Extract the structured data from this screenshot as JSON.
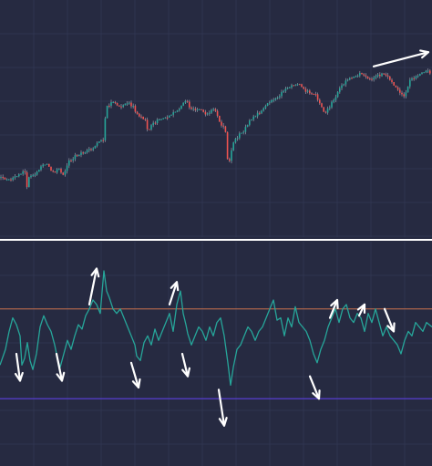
{
  "colors": {
    "background": "#262a41",
    "grid": "#2f3450",
    "up": "#26a69a",
    "down": "#ef5350",
    "wick": "#8a8f9e",
    "oscillator": "#26a69a",
    "upper_level": "#c8704a",
    "lower_level": "#5b3fe0",
    "separator": "#ffffff",
    "arrow": "#ffffff"
  },
  "chart_data": [
    {
      "type": "candlestick",
      "title": "",
      "xlabel": "",
      "ylabel": "",
      "ylim": [
        0,
        100
      ],
      "grid": true,
      "series": [
        {
          "points": [
            [
              0,
              25
            ],
            [
              8,
              24
            ],
            [
              16,
              25
            ],
            [
              24,
              27
            ],
            [
              28,
              28
            ],
            [
              30,
              20
            ],
            [
              32,
              26
            ],
            [
              40,
              27
            ],
            [
              46,
              30
            ],
            [
              52,
              31
            ],
            [
              56,
              28
            ],
            [
              60,
              27
            ],
            [
              64,
              29
            ],
            [
              70,
              26
            ],
            [
              76,
              32
            ],
            [
              82,
              34
            ],
            [
              88,
              35
            ],
            [
              94,
              36
            ],
            [
              100,
              37
            ],
            [
              106,
              39
            ],
            [
              110,
              41
            ],
            [
              114,
              40
            ],
            [
              116,
              55
            ],
            [
              120,
              56
            ],
            [
              126,
              57
            ],
            [
              130,
              55
            ],
            [
              136,
              56
            ],
            [
              140,
              57
            ],
            [
              146,
              55
            ],
            [
              150,
              52
            ],
            [
              156,
              50
            ],
            [
              160,
              49
            ],
            [
              162,
              44
            ],
            [
              166,
              47
            ],
            [
              172,
              49
            ],
            [
              178,
              50
            ],
            [
              184,
              51
            ],
            [
              190,
              52
            ],
            [
              196,
              54
            ],
            [
              200,
              56
            ],
            [
              204,
              58
            ],
            [
              208,
              55
            ],
            [
              214,
              53
            ],
            [
              220,
              54
            ],
            [
              226,
              52
            ],
            [
              230,
              53
            ],
            [
              236,
              54
            ],
            [
              240,
              49
            ],
            [
              244,
              47
            ],
            [
              248,
              44
            ],
            [
              250,
              30
            ],
            [
              252,
              32
            ],
            [
              256,
              40
            ],
            [
              262,
              43
            ],
            [
              268,
              45
            ],
            [
              274,
              49
            ],
            [
              280,
              51
            ],
            [
              286,
              53
            ],
            [
              292,
              56
            ],
            [
              298,
              58
            ],
            [
              304,
              59
            ],
            [
              310,
              61
            ],
            [
              316,
              63
            ],
            [
              322,
              64
            ],
            [
              328,
              65
            ],
            [
              334,
              62
            ],
            [
              340,
              61
            ],
            [
              346,
              60
            ],
            [
              352,
              56
            ],
            [
              356,
              52
            ],
            [
              360,
              54
            ],
            [
              366,
              58
            ],
            [
              372,
              62
            ],
            [
              378,
              65
            ],
            [
              384,
              67
            ],
            [
              390,
              68
            ],
            [
              396,
              69
            ],
            [
              402,
              67
            ],
            [
              408,
              66
            ],
            [
              414,
              68
            ],
            [
              420,
              69
            ],
            [
              426,
              67
            ],
            [
              432,
              64
            ],
            [
              438,
              62
            ],
            [
              442,
              59
            ],
            [
              446,
              62
            ],
            [
              450,
              66
            ],
            [
              456,
              68
            ],
            [
              462,
              69
            ],
            [
              468,
              70
            ],
            [
              474,
              69
            ]
          ]
        }
      ],
      "annotations": [
        {
          "type": "arrow",
          "from": [
            410,
            72
          ],
          "to": [
            470,
            78
          ]
        }
      ]
    },
    {
      "type": "line",
      "title": "",
      "xlabel": "",
      "ylabel": "",
      "ylim": [
        0,
        100
      ],
      "grid": true,
      "levels": [
        70,
        30
      ],
      "series": [
        {
          "points": [
            [
              0,
              45
            ],
            [
              6,
              52
            ],
            [
              10,
              60
            ],
            [
              14,
              66
            ],
            [
              18,
              63
            ],
            [
              22,
              58
            ],
            [
              24,
              45
            ],
            [
              27,
              48
            ],
            [
              30,
              55
            ],
            [
              33,
              47
            ],
            [
              36,
              43
            ],
            [
              40,
              50
            ],
            [
              44,
              62
            ],
            [
              48,
              67
            ],
            [
              52,
              63
            ],
            [
              56,
              60
            ],
            [
              60,
              54
            ],
            [
              63,
              48
            ],
            [
              66,
              44
            ],
            [
              70,
              50
            ],
            [
              74,
              56
            ],
            [
              78,
              52
            ],
            [
              82,
              58
            ],
            [
              86,
              63
            ],
            [
              90,
              61
            ],
            [
              94,
              67
            ],
            [
              98,
              70
            ],
            [
              102,
              74
            ],
            [
              106,
              72
            ],
            [
              110,
              68
            ],
            [
              114,
              87
            ],
            [
              117,
              78
            ],
            [
              120,
              75
            ],
            [
              124,
              70
            ],
            [
              128,
              68
            ],
            [
              132,
              70
            ],
            [
              136,
              66
            ],
            [
              140,
              62
            ],
            [
              144,
              58
            ],
            [
              148,
              54
            ],
            [
              150,
              49
            ],
            [
              154,
              47
            ],
            [
              158,
              55
            ],
            [
              162,
              58
            ],
            [
              166,
              54
            ],
            [
              170,
              61
            ],
            [
              174,
              56
            ],
            [
              178,
              60
            ],
            [
              182,
              64
            ],
            [
              186,
              68
            ],
            [
              190,
              60
            ],
            [
              194,
              72
            ],
            [
              198,
              78
            ],
            [
              201,
              68
            ],
            [
              204,
              63
            ],
            [
              206,
              59
            ],
            [
              210,
              54
            ],
            [
              214,
              58
            ],
            [
              218,
              62
            ],
            [
              222,
              60
            ],
            [
              226,
              56
            ],
            [
              230,
              62
            ],
            [
              234,
              58
            ],
            [
              238,
              64
            ],
            [
              242,
              66
            ],
            [
              246,
              58
            ],
            [
              250,
              46
            ],
            [
              253,
              36
            ],
            [
              256,
              44
            ],
            [
              260,
              52
            ],
            [
              264,
              54
            ],
            [
              268,
              58
            ],
            [
              272,
              62
            ],
            [
              276,
              60
            ],
            [
              280,
              56
            ],
            [
              284,
              60
            ],
            [
              288,
              62
            ],
            [
              292,
              66
            ],
            [
              296,
              70
            ],
            [
              300,
              74
            ],
            [
              304,
              65
            ],
            [
              308,
              66
            ],
            [
              312,
              58
            ],
            [
              316,
              66
            ],
            [
              320,
              62
            ],
            [
              324,
              71
            ],
            [
              328,
              64
            ],
            [
              332,
              62
            ],
            [
              336,
              60
            ],
            [
              340,
              56
            ],
            [
              344,
              50
            ],
            [
              348,
              46
            ],
            [
              352,
              52
            ],
            [
              356,
              56
            ],
            [
              360,
              62
            ],
            [
              364,
              66
            ],
            [
              368,
              70
            ],
            [
              372,
              64
            ],
            [
              376,
              70
            ],
            [
              380,
              72
            ],
            [
              384,
              66
            ],
            [
              388,
              64
            ],
            [
              392,
              68
            ],
            [
              396,
              66
            ],
            [
              400,
              60
            ],
            [
              404,
              68
            ],
            [
              408,
              64
            ],
            [
              412,
              70
            ],
            [
              416,
              64
            ],
            [
              420,
              58
            ],
            [
              424,
              62
            ],
            [
              428,
              58
            ],
            [
              432,
              56
            ],
            [
              436,
              54
            ],
            [
              440,
              50
            ],
            [
              444,
              56
            ],
            [
              448,
              60
            ],
            [
              452,
              58
            ],
            [
              456,
              64
            ],
            [
              460,
              62
            ],
            [
              464,
              60
            ],
            [
              468,
              64
            ],
            [
              474,
              62
            ]
          ]
        }
      ],
      "annotations": [
        {
          "type": "arrow",
          "from": [
            18,
            50
          ],
          "to": [
            22,
            38
          ]
        },
        {
          "type": "arrow",
          "from": [
            62,
            50
          ],
          "to": [
            68,
            38
          ]
        },
        {
          "type": "arrow",
          "from": [
            98,
            72
          ],
          "to": [
            106,
            88
          ]
        },
        {
          "type": "arrow",
          "from": [
            144,
            46
          ],
          "to": [
            152,
            35
          ]
        },
        {
          "type": "arrow",
          "from": [
            186,
            72
          ],
          "to": [
            194,
            82
          ]
        },
        {
          "type": "arrow",
          "from": [
            200,
            50
          ],
          "to": [
            206,
            40
          ]
        },
        {
          "type": "arrow",
          "from": [
            240,
            34
          ],
          "to": [
            246,
            18
          ]
        },
        {
          "type": "arrow",
          "from": [
            340,
            40
          ],
          "to": [
            350,
            30
          ]
        },
        {
          "type": "arrow",
          "from": [
            362,
            66
          ],
          "to": [
            370,
            74
          ]
        },
        {
          "type": "arrow",
          "from": [
            394,
            67
          ],
          "to": [
            400,
            72
          ]
        },
        {
          "type": "arrow",
          "from": [
            422,
            70
          ],
          "to": [
            432,
            60
          ]
        }
      ]
    }
  ]
}
